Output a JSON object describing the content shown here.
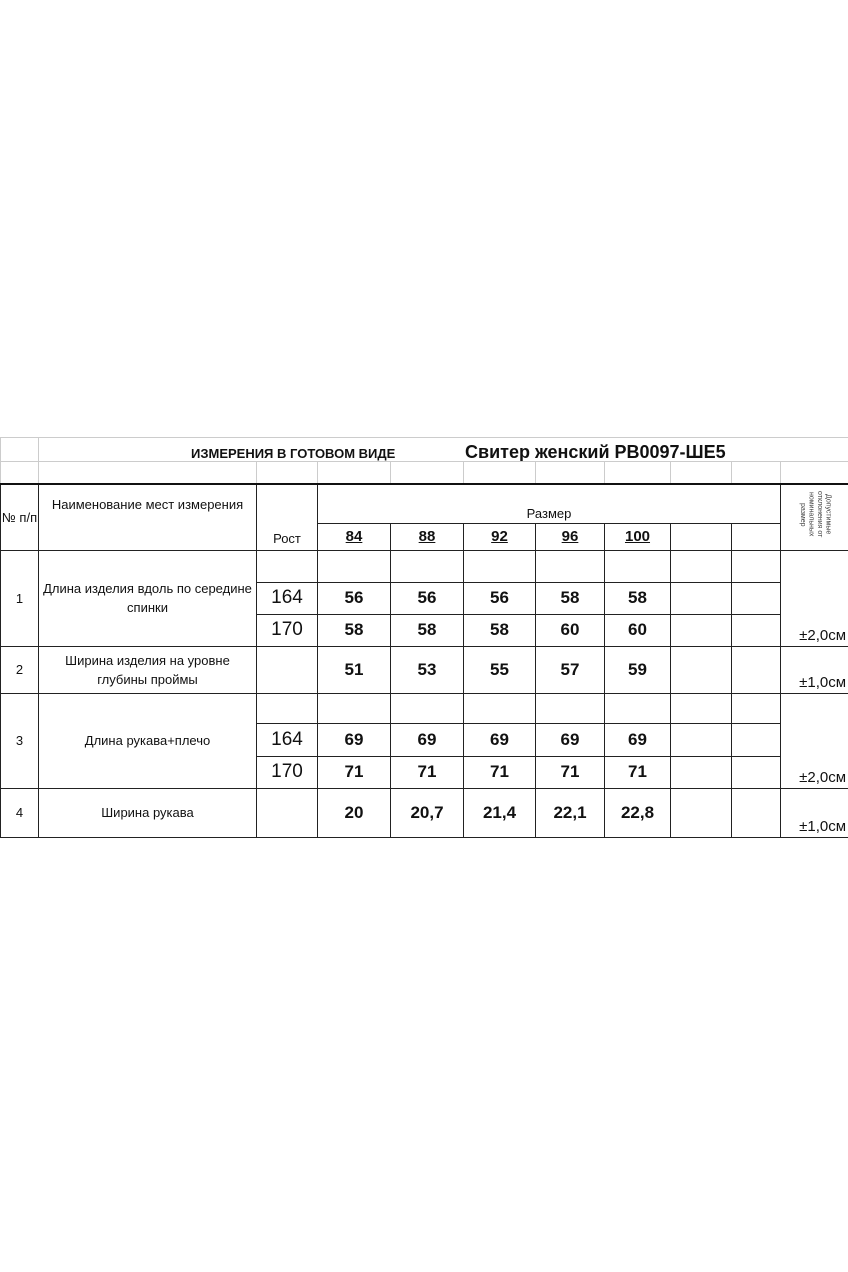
{
  "title_left": "ИЗМЕРЕНИЯ  В ГОТОВОМ  ВИДЕ",
  "title_right": "Свитер женский   РВ0097-ШЕ5",
  "headers": {
    "num": "№ п/п",
    "name": "Наименование мест измерения",
    "height": "Рост",
    "size": "Размер",
    "tolerance": "Допустимые отклонения от номинальных размер"
  },
  "sizes": [
    "84",
    "88",
    "92",
    "96",
    "100"
  ],
  "rows": [
    {
      "num": "1",
      "name": "Длина изделия вдоль по середине спинки",
      "tolerance": "±2,0см",
      "sub": [
        {
          "height": "164",
          "values": [
            "56",
            "56",
            "56",
            "58",
            "58"
          ]
        },
        {
          "height": "170",
          "values": [
            "58",
            "58",
            "58",
            "60",
            "60"
          ]
        }
      ]
    },
    {
      "num": "2",
      "name": "Ширина изделия на уровне глубины проймы",
      "tolerance": "±1,0см",
      "values": [
        "51",
        "53",
        "55",
        "57",
        "59"
      ]
    },
    {
      "num": "3",
      "name": "Длина рукава+плечо",
      "tolerance": "±2,0см",
      "sub": [
        {
          "height": "164",
          "values": [
            "69",
            "69",
            "69",
            "69",
            "69"
          ]
        },
        {
          "height": "170",
          "values": [
            "71",
            "71",
            "71",
            "71",
            "71"
          ]
        }
      ]
    },
    {
      "num": "4",
      "name": "Ширина рукава",
      "tolerance": "±1,0см",
      "values": [
        "20",
        "20,7",
        "21,4",
        "22,1",
        "22,8"
      ]
    }
  ]
}
